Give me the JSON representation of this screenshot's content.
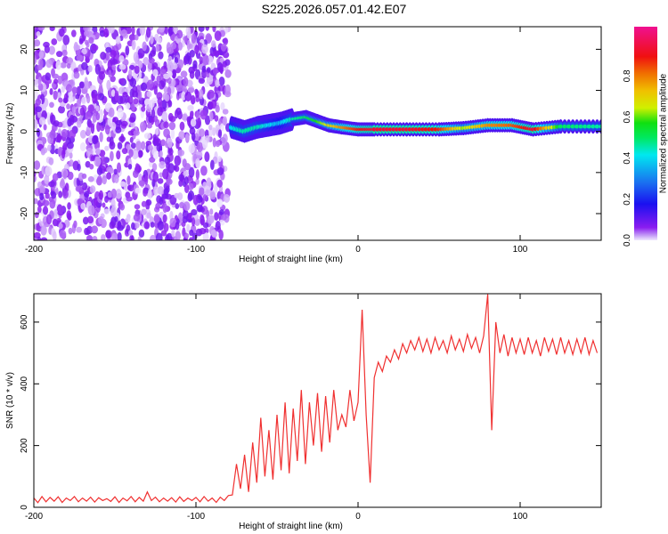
{
  "title": "S225.2026.057.01.42.E07",
  "colorbar": {
    "label": "Normalized spectral amplitude",
    "ticks": [
      "0.0",
      "0.2",
      "0.4",
      "0.6",
      "0.8"
    ],
    "tick_values": [
      0,
      0.2,
      0.4,
      0.6,
      0.8
    ],
    "range": [
      0,
      1.04
    ]
  },
  "chart_data": [
    {
      "type": "heatmap",
      "xlabel": "Height of straight line (km)",
      "ylabel": "Frequency (Hz)",
      "xlim": [
        -200,
        150
      ],
      "ylim": [
        -26.5,
        25.5
      ],
      "xticks": [
        -200,
        -100,
        0,
        100
      ],
      "xtick_labels": [
        "-200",
        "-100",
        "0",
        "100"
      ],
      "yticks": [
        -20,
        -10,
        0,
        10,
        20
      ],
      "ytick_labels": [
        "-20",
        "-10",
        "0",
        "10",
        "20"
      ],
      "noise_region": {
        "x": [
          -200,
          -80
        ],
        "amplitude": [
          0.0,
          0.1
        ]
      },
      "ridge": [
        {
          "x": -78,
          "f": 1,
          "a": 0.4
        },
        {
          "x": -70,
          "f": 0,
          "a": 0.45
        },
        {
          "x": -62,
          "f": 1,
          "a": 0.45
        },
        {
          "x": -55,
          "f": 1.5,
          "a": 0.4
        },
        {
          "x": -48,
          "f": 2,
          "a": 0.35
        },
        {
          "x": -40,
          "f": 3,
          "a": 0.45
        },
        {
          "x": -32,
          "f": 3.5,
          "a": 0.5
        },
        {
          "x": -25,
          "f": 2.5,
          "a": 0.55
        },
        {
          "x": -18,
          "f": 1.5,
          "a": 0.65
        },
        {
          "x": -10,
          "f": 1,
          "a": 0.75
        },
        {
          "x": 0,
          "f": 0.5,
          "a": 0.85
        },
        {
          "x": 10,
          "f": 0.5,
          "a": 0.9
        },
        {
          "x": 30,
          "f": 0.5,
          "a": 0.9
        },
        {
          "x": 50,
          "f": 0.5,
          "a": 0.85
        },
        {
          "x": 65,
          "f": 0.8,
          "a": 0.6
        },
        {
          "x": 80,
          "f": 1.5,
          "a": 0.75
        },
        {
          "x": 95,
          "f": 1.5,
          "a": 0.8
        },
        {
          "x": 108,
          "f": 0.5,
          "a": 0.9
        },
        {
          "x": 125,
          "f": 1.2,
          "a": 0.5
        },
        {
          "x": 150,
          "f": 1.2,
          "a": 0.45
        }
      ]
    },
    {
      "type": "line",
      "xlabel": "Height of straight line (km)",
      "ylabel": "SNR (10 * v/v)",
      "xlim": [
        -200,
        150
      ],
      "ylim": [
        0,
        692
      ],
      "xticks": [
        -200,
        -100,
        0,
        100
      ],
      "xtick_labels": [
        "-200",
        "-100",
        "0",
        "100"
      ],
      "yticks": [
        0,
        200,
        400,
        600
      ],
      "ytick_labels": [
        "0",
        "200",
        "400",
        "600"
      ],
      "color": "#f03030",
      "x_start": -200,
      "x_step": 2.5,
      "y": [
        30,
        15,
        35,
        18,
        32,
        20,
        34,
        16,
        30,
        22,
        35,
        18,
        30,
        20,
        33,
        17,
        31,
        22,
        28,
        19,
        34,
        16,
        30,
        21,
        35,
        18,
        32,
        20,
        50,
        22,
        33,
        18,
        30,
        20,
        31,
        17,
        34,
        19,
        30,
        22,
        32,
        18,
        35,
        20,
        30,
        16,
        33,
        22,
        38,
        40,
        140,
        60,
        170,
        50,
        210,
        80,
        290,
        100,
        250,
        90,
        300,
        120,
        340,
        110,
        320,
        150,
        380,
        140,
        340,
        200,
        370,
        180,
        360,
        210,
        380,
        250,
        300,
        260,
        380,
        280,
        340,
        640,
        300,
        80,
        420,
        470,
        440,
        490,
        470,
        510,
        480,
        530,
        500,
        540,
        510,
        550,
        505,
        545,
        500,
        550,
        510,
        540,
        500,
        555,
        510,
        545,
        505,
        560,
        515,
        550,
        500,
        555,
        690,
        250,
        600,
        500,
        560,
        490,
        550,
        500,
        545,
        495,
        550,
        500,
        540,
        490,
        550,
        505,
        545,
        495,
        550,
        500,
        540,
        495,
        545,
        500,
        550,
        495,
        540,
        500
      ]
    }
  ]
}
